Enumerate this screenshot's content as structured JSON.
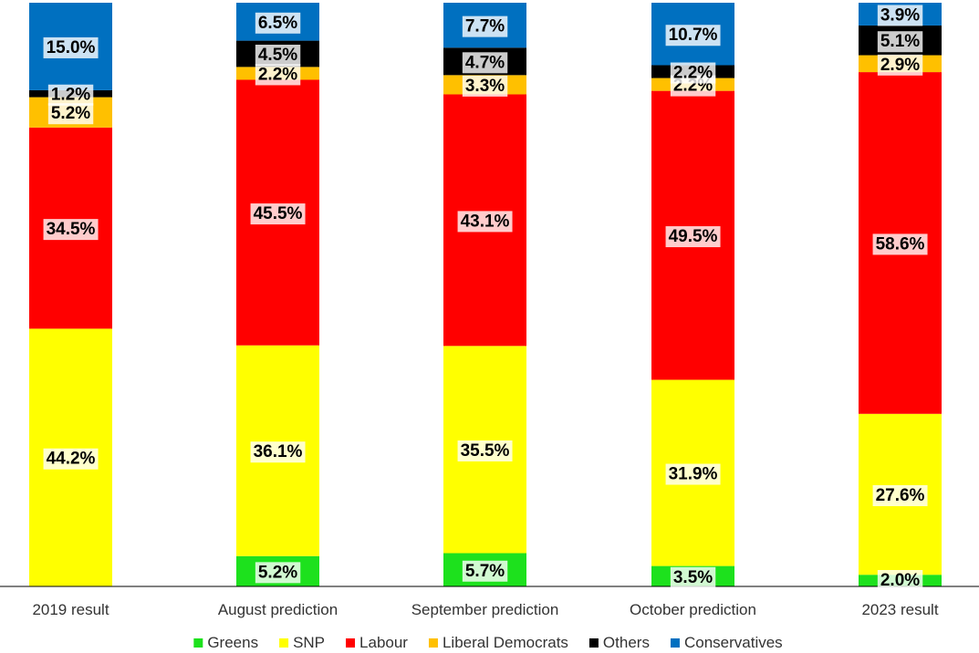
{
  "chart_data": {
    "type": "bar",
    "stacked": true,
    "normalized": true,
    "categories": [
      "2019 result",
      "August prediction",
      "September prediction",
      "October prediction",
      "2023 result"
    ],
    "series": [
      {
        "name": "Greens",
        "color": "#1de11d",
        "values": [
          0,
          5.2,
          5.7,
          3.5,
          2.0
        ],
        "labels": [
          "",
          "5.2%",
          "5.7%",
          "3.5%",
          "2.0%"
        ]
      },
      {
        "name": "SNP",
        "color": "#ffff00",
        "values": [
          44.2,
          36.1,
          35.5,
          31.9,
          27.6
        ],
        "labels": [
          "44.2%",
          "36.1%",
          "35.5%",
          "31.9%",
          "27.6%"
        ]
      },
      {
        "name": "Labour",
        "color": "#ff0000",
        "values": [
          34.5,
          45.5,
          43.1,
          49.5,
          58.6
        ],
        "labels": [
          "34.5%",
          "45.5%",
          "43.1%",
          "49.5%",
          "58.6%"
        ]
      },
      {
        "name": "Liberal Democrats",
        "color": "#ffc000",
        "values": [
          5.2,
          2.2,
          3.3,
          2.2,
          2.9
        ],
        "labels": [
          "5.2%",
          "2.2%",
          "3.3%",
          "2.2%",
          "2.9%"
        ]
      },
      {
        "name": "Others",
        "color": "#000000",
        "values": [
          1.2,
          4.5,
          4.7,
          2.2,
          5.1
        ],
        "labels": [
          "1.2%",
          "4.5%",
          "4.7%",
          "2.2%",
          "5.1%"
        ]
      },
      {
        "name": "Conservatives",
        "color": "#0070c0",
        "values": [
          15.0,
          6.5,
          7.7,
          10.7,
          3.9
        ],
        "labels": [
          "15.0%",
          "6.5%",
          "7.7%",
          "10.7%",
          "3.9%"
        ]
      }
    ],
    "title": "",
    "xlabel": "",
    "ylabel": "",
    "legend_position": "bottom",
    "grid": false
  }
}
